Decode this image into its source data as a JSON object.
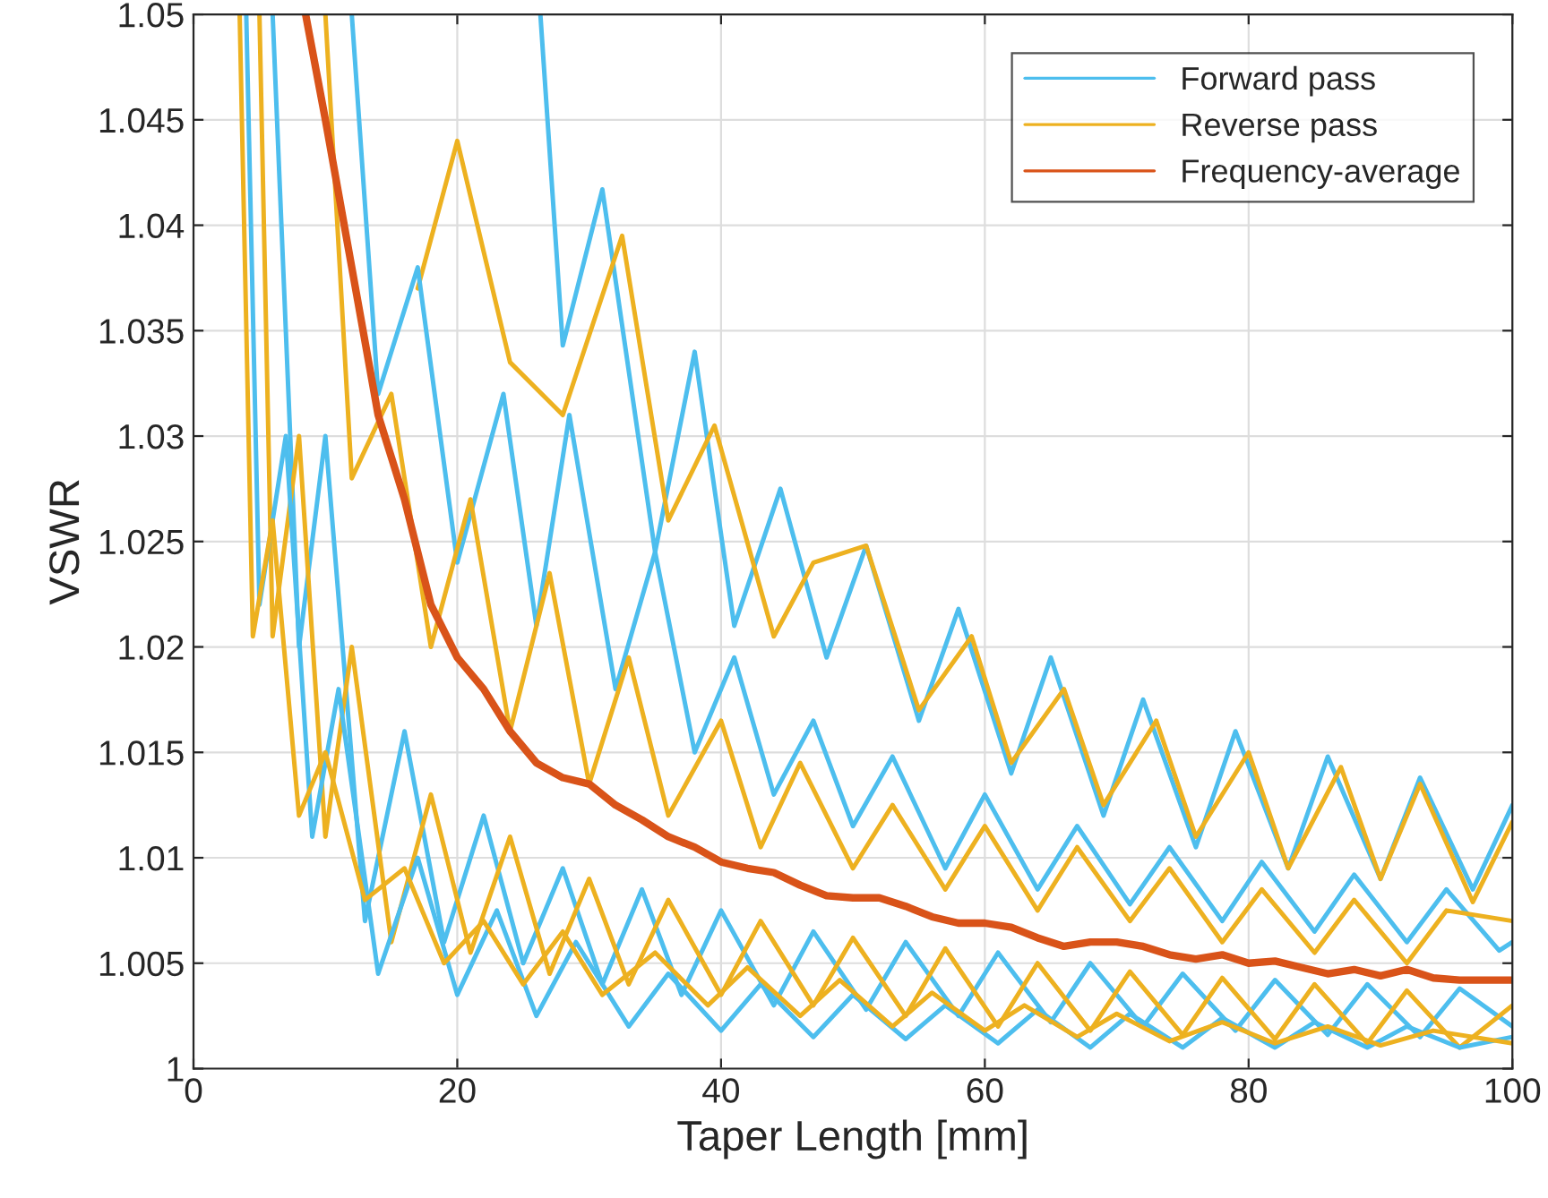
{
  "chart_data": {
    "type": "line",
    "xlabel": "Taper Length [mm]",
    "ylabel": "VSWR",
    "xlim": [
      0,
      100
    ],
    "xticks": [
      0,
      20,
      40,
      60,
      80,
      100
    ],
    "ylim": [
      1,
      1.05
    ],
    "yticks": [
      1,
      1.005,
      1.01,
      1.015,
      1.02,
      1.025,
      1.03,
      1.035,
      1.04,
      1.045,
      1.05
    ],
    "grid": true,
    "legend": "top right",
    "marker": "none",
    "line_style": "solid",
    "series": [
      {
        "name": "Forward pass",
        "color": "#4dbeee",
        "x": [
          26.3,
          28,
          31,
          35,
          38,
          41,
          44.5,
          48,
          51,
          55,
          58,
          62,
          65,
          69,
          72,
          76,
          79,
          83,
          86,
          90,
          93,
          97,
          100
        ],
        "values": [
          1.05,
          1.0343,
          1.0417,
          1.0245,
          1.034,
          1.021,
          1.0275,
          1.0195,
          1.0248,
          1.0165,
          1.0218,
          1.014,
          1.0195,
          1.012,
          1.0175,
          1.0105,
          1.016,
          1.0095,
          1.0148,
          1.009,
          1.0138,
          1.0085,
          1.0125
        ]
      },
      {
        "name": "Reverse pass",
        "color": "#edb120",
        "x": [
          17,
          20,
          24,
          28,
          32.5,
          36,
          39.5,
          44,
          47,
          51,
          55,
          59,
          62,
          66,
          69,
          73,
          76,
          80,
          83,
          87,
          90,
          93,
          97,
          100
        ],
        "values": [
          1.037,
          1.044,
          1.0335,
          1.031,
          1.0395,
          1.026,
          1.0305,
          1.0205,
          1.024,
          1.0248,
          1.017,
          1.0205,
          1.0145,
          1.018,
          1.0125,
          1.0165,
          1.011,
          1.015,
          1.0095,
          1.0143,
          1.009,
          1.0135,
          1.0079,
          1.0117
        ]
      },
      {
        "color": "#4dbeee",
        "x": [
          12,
          14,
          17,
          20,
          23.5,
          26,
          28.5,
          32,
          35,
          38,
          41,
          44,
          47,
          50,
          53,
          57,
          60,
          64,
          67,
          71,
          74,
          78,
          81,
          85,
          88,
          92,
          95,
          99,
          100
        ],
        "values": [
          1.05,
          1.032,
          1.038,
          1.024,
          1.032,
          1.021,
          1.031,
          1.018,
          1.0245,
          1.015,
          1.0195,
          1.013,
          1.0165,
          1.0115,
          1.0148,
          1.0095,
          1.013,
          1.0085,
          1.0115,
          1.0078,
          1.0105,
          1.007,
          1.0098,
          1.0065,
          1.0092,
          1.006,
          1.0085,
          1.0056,
          1.006
        ]
      },
      {
        "color": "#edb120",
        "x": [
          10,
          12,
          15,
          18,
          21,
          24,
          27,
          30,
          33,
          36,
          40,
          43,
          46,
          50,
          53,
          57,
          60,
          64,
          67,
          71,
          74,
          78,
          81,
          85,
          88,
          92,
          95,
          100
        ],
        "values": [
          1.05,
          1.028,
          1.032,
          1.02,
          1.027,
          1.016,
          1.0235,
          1.0135,
          1.0195,
          1.012,
          1.0165,
          1.0105,
          1.0145,
          1.0095,
          1.0125,
          1.0085,
          1.0115,
          1.0075,
          1.0105,
          1.007,
          1.0095,
          1.006,
          1.0085,
          1.0055,
          1.008,
          1.005,
          1.0075,
          1.007
        ]
      },
      {
        "color": "#4dbeee",
        "x": [
          6,
          8,
          10,
          13,
          16,
          19,
          22,
          25,
          28,
          31,
          34,
          37,
          40,
          44,
          47,
          51,
          54,
          58,
          61,
          65,
          68,
          72,
          75,
          79,
          82,
          86,
          89,
          93,
          96,
          100
        ],
        "values": [
          1.05,
          1.02,
          1.03,
          1.007,
          1.016,
          1.006,
          1.012,
          1.005,
          1.0095,
          1.004,
          1.0085,
          1.0035,
          1.0075,
          1.003,
          1.0065,
          1.0028,
          1.006,
          1.0025,
          1.0055,
          1.0022,
          1.005,
          1.002,
          1.0045,
          1.0018,
          1.0042,
          1.0016,
          1.004,
          1.0015,
          1.0038,
          1.002
        ]
      },
      {
        "color": "#edb120",
        "x": [
          5,
          6,
          8,
          10,
          12,
          15,
          18,
          21,
          24,
          27,
          30,
          33,
          36,
          40,
          43,
          47,
          50,
          54,
          57,
          61,
          64,
          68,
          71,
          75,
          78,
          82,
          85,
          89,
          92,
          96,
          100
        ],
        "values": [
          1.05,
          1.0205,
          1.03,
          1.011,
          1.02,
          1.006,
          1.013,
          1.0055,
          1.011,
          1.0045,
          1.009,
          1.004,
          1.008,
          1.0035,
          1.007,
          1.003,
          1.0062,
          1.0025,
          1.0057,
          1.002,
          1.005,
          1.0018,
          1.0046,
          1.0016,
          1.0043,
          1.0014,
          1.004,
          1.0012,
          1.0037,
          1.001,
          1.003
        ]
      },
      {
        "color": "#4dbeee",
        "x": [
          4,
          5,
          7,
          9,
          11,
          14,
          17,
          20,
          23,
          26,
          29,
          33,
          36,
          40,
          43,
          47,
          50,
          54,
          57,
          61,
          64,
          68,
          71,
          75,
          78,
          82,
          85,
          89,
          92,
          96,
          100
        ],
        "values": [
          1.05,
          1.022,
          1.03,
          1.011,
          1.018,
          1.0045,
          1.01,
          1.0035,
          1.0075,
          1.0025,
          1.006,
          1.002,
          1.0045,
          1.0018,
          1.004,
          1.0015,
          1.0035,
          1.0014,
          1.003,
          1.0012,
          1.0028,
          1.001,
          1.0026,
          1.001,
          1.0024,
          1.001,
          1.0022,
          1.001,
          1.002,
          1.001,
          1.0015
        ]
      },
      {
        "color": "#edb120",
        "x": [
          3.5,
          4.5,
          6,
          8,
          10,
          13,
          16,
          19,
          22,
          25,
          28,
          31,
          35,
          39,
          42,
          46,
          49,
          53,
          56,
          60,
          63,
          67,
          70,
          74,
          78,
          82,
          86,
          90,
          94,
          100
        ],
        "values": [
          1.05,
          1.0205,
          1.026,
          1.012,
          1.015,
          1.008,
          1.0095,
          1.005,
          1.007,
          1.004,
          1.0065,
          1.0035,
          1.0055,
          1.003,
          1.0048,
          1.0025,
          1.0042,
          1.002,
          1.0036,
          1.0018,
          1.003,
          1.0015,
          1.0026,
          1.0013,
          1.0022,
          1.0012,
          1.002,
          1.0011,
          1.0018,
          1.0012
        ]
      },
      {
        "name": "Frequency-average",
        "color": "#d95319",
        "x": [
          8.5,
          10,
          12,
          14,
          16,
          18,
          20,
          22,
          24,
          26,
          28,
          30,
          32,
          34,
          36,
          38,
          40,
          42,
          44,
          46,
          48,
          50,
          52,
          54,
          56,
          58,
          60,
          62,
          64,
          66,
          68,
          70,
          72,
          74,
          76,
          78,
          80,
          82,
          84,
          86,
          88,
          90,
          92,
          94,
          96,
          98,
          100
        ],
        "values": [
          1.05,
          1.045,
          1.038,
          1.031,
          1.027,
          1.022,
          1.0195,
          1.018,
          1.016,
          1.0145,
          1.0138,
          1.0135,
          1.0125,
          1.0118,
          1.011,
          1.0105,
          1.0098,
          1.0095,
          1.0093,
          1.0087,
          1.0082,
          1.0081,
          1.0081,
          1.0077,
          1.0072,
          1.0069,
          1.0069,
          1.0067,
          1.0062,
          1.0058,
          1.006,
          1.006,
          1.0058,
          1.0054,
          1.0052,
          1.0054,
          1.005,
          1.0051,
          1.0048,
          1.0045,
          1.0047,
          1.0044,
          1.0047,
          1.0043,
          1.0042,
          1.0042,
          1.0042
        ]
      }
    ]
  }
}
